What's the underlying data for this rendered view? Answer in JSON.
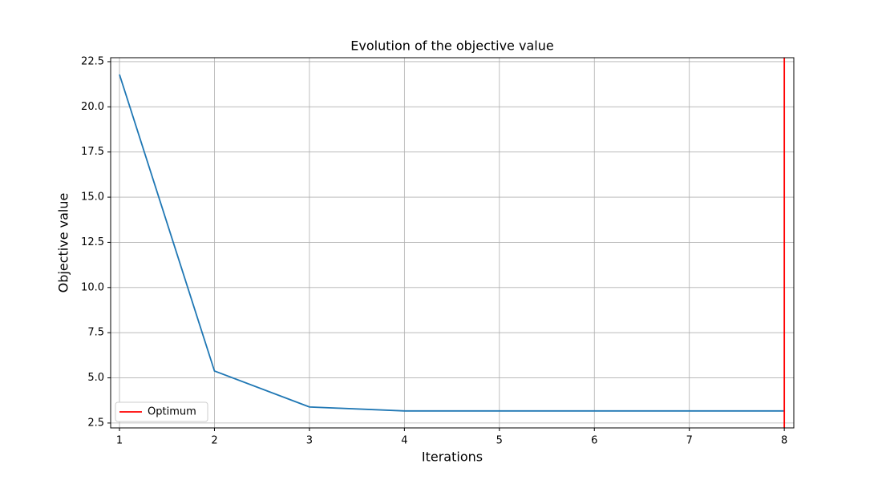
{
  "chart_data": {
    "type": "line",
    "title": "Evolution of the objective value",
    "x_label": "Iterations",
    "y_label": "Objective value",
    "x": [
      1,
      2,
      3,
      4,
      5,
      6,
      7,
      8
    ],
    "series": [
      {
        "color": "#1f77b4",
        "values": [
          21.79,
          5.38,
          3.39,
          3.17,
          3.17,
          3.17,
          3.17,
          3.17
        ]
      }
    ],
    "vline": {
      "name": "Optimum",
      "x": 8,
      "color": "#ff0000"
    },
    "xlim": [
      0.907,
      8.1
    ],
    "xticks": [
      1,
      2,
      3,
      4,
      5,
      6,
      7,
      8
    ],
    "ylim": [
      2.23,
      22.72
    ],
    "yticks": [
      2.5,
      {
        "value": 5,
        "label": "5.0"
      },
      7.5,
      {
        "value": 10,
        "label": "10.0"
      },
      12.5,
      {
        "value": 15,
        "label": "15.0"
      },
      17.5,
      {
        "value": 20,
        "label": "20.0"
      },
      22.5
    ],
    "grid": true,
    "legend": "lower left"
  }
}
